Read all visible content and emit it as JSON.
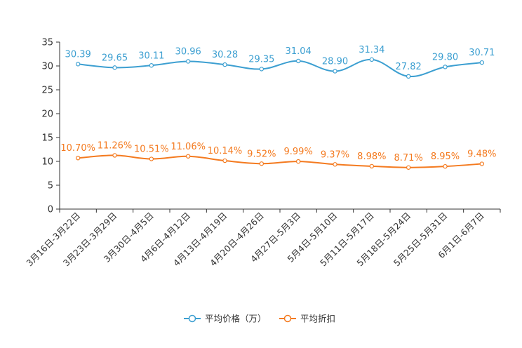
{
  "chart_data": {
    "type": "line",
    "title": "",
    "xlabel": "",
    "ylabel": "",
    "ylim": [
      0,
      35
    ],
    "yticks": [
      0,
      5,
      10,
      15,
      20,
      25,
      30,
      35
    ],
    "grid": false,
    "legend_position": "bottom",
    "categories": [
      "3月16日-3月22日",
      "3月23日-3月29日",
      "3月30日-4月5日",
      "4月6日-4月12日",
      "4月13日-4月19日",
      "4月20日-4月26日",
      "4月27日-5月3日",
      "5月4日-5月10日",
      "5月11日-5月17日",
      "5月18日-5月24日",
      "5月25日-5月31日",
      "6月1日-6月7日"
    ],
    "series": [
      {
        "name": "平均价格（万）",
        "color": "#3c9fd1",
        "values": [
          30.39,
          29.65,
          30.11,
          30.96,
          30.28,
          29.35,
          31.04,
          28.9,
          31.34,
          27.82,
          29.8,
          30.71
        ],
        "labels": [
          "30.39",
          "29.65",
          "30.11",
          "30.96",
          "30.28",
          "29.35",
          "31.04",
          "28.90",
          "31.34",
          "27.82",
          "29.80",
          "30.71"
        ]
      },
      {
        "name": "平均折扣",
        "color": "#f47a1f",
        "values": [
          10.7,
          11.26,
          10.51,
          11.06,
          10.14,
          9.52,
          9.99,
          9.37,
          8.98,
          8.71,
          8.95,
          9.48
        ],
        "labels": [
          "10.70%",
          "11.26%",
          "10.51%",
          "11.06%",
          "10.14%",
          "9.52%",
          "9.99%",
          "9.37%",
          "8.98%",
          "8.71%",
          "8.95%",
          "9.48%"
        ]
      }
    ]
  }
}
